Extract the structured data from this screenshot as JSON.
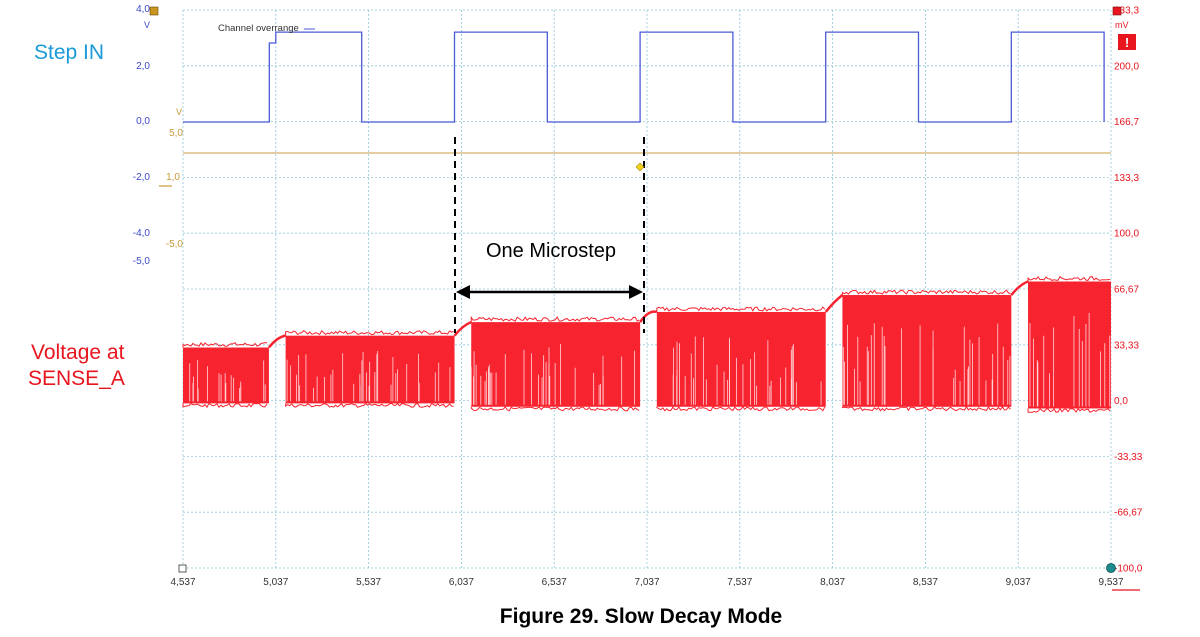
{
  "labels": {
    "step_in": "Step IN",
    "voltage_at": "Voltage at",
    "sense_a": "SENSE_A",
    "one_microstep": "One Microstep",
    "channel_overrange": "Channel overrange",
    "caption": "Figure 29. Slow Decay Mode",
    "unit_v": "V",
    "unit_mv": "mV",
    "unit_v_orange": "V",
    "warn_glyph": "!"
  },
  "colors": {
    "step_trace": "#4a5bd6",
    "sense_trace": "#f7232f",
    "trigger_line": "#d4b06b",
    "grid": "#8fc9d9",
    "blue_axis": "#3a4bc8",
    "red_axis": "#e8141e",
    "orange_axis": "#c89a3a",
    "step_label": "#1a9ad6",
    "sense_label": "#e8141e"
  },
  "chart_data": {
    "type": "line",
    "xlabel": "",
    "x_ticks": [
      "4,537",
      "5,037",
      "5,537",
      "6,037",
      "6,537",
      "7,037",
      "7,537",
      "8,037",
      "8,537",
      "9,037",
      "9,537"
    ],
    "xlim": [
      4.537,
      9.537
    ],
    "left_axis_blue": {
      "unit": "V",
      "ticks": [
        "4,0",
        "2,0",
        "0,0",
        "-2,0",
        "-4,0"
      ],
      "lim": [
        -4.0,
        4.0
      ]
    },
    "left_axis_orange": {
      "unit": "V",
      "ticks": [
        "5,0",
        "1,0",
        "-5,0"
      ]
    },
    "left_axis_extra": {
      "ticks": [
        "-5,0"
      ]
    },
    "right_axis_red": {
      "unit": "mV",
      "ticks": [
        "233,3",
        "200,0",
        "166,7",
        "133,3",
        "100,0",
        "66,67",
        "33,33",
        "0,0",
        "-33,33",
        "-66,67",
        "-100,0"
      ],
      "lim": [
        -100.0,
        233.3
      ]
    },
    "series": [
      {
        "name": "Step IN",
        "axis": "left_blue",
        "unit": "V",
        "points": [
          [
            4.537,
            0.0
          ],
          [
            5.002,
            0.0
          ],
          [
            5.002,
            2.9
          ],
          [
            5.037,
            2.9
          ],
          [
            5.037,
            3.3
          ],
          [
            5.5,
            3.3
          ],
          [
            5.5,
            0.0
          ],
          [
            6.0,
            0.0
          ],
          [
            6.0,
            3.3
          ],
          [
            6.5,
            3.3
          ],
          [
            6.5,
            0.0
          ],
          [
            7.0,
            0.0
          ],
          [
            7.0,
            3.3
          ],
          [
            7.5,
            3.3
          ],
          [
            7.5,
            0.0
          ],
          [
            8.0,
            0.0
          ],
          [
            8.0,
            3.3
          ],
          [
            8.5,
            3.3
          ],
          [
            8.5,
            0.0
          ],
          [
            9.0,
            0.0
          ],
          [
            9.0,
            3.3
          ],
          [
            9.5,
            3.3
          ],
          [
            9.5,
            0.0
          ]
        ]
      },
      {
        "name": "Voltage at SENSE_A",
        "axis": "right_red",
        "unit": "mV",
        "segments": [
          {
            "x": [
              4.537,
              5.0
            ],
            "peak": 31,
            "low": -2,
            "ramp_to": 36
          },
          {
            "x": [
              5.09,
              6.0
            ],
            "peak": 38,
            "low": -2,
            "ramp_to": 43
          },
          {
            "x": [
              6.09,
              7.0
            ],
            "peak": 46,
            "low": -4,
            "ramp_to": 52
          },
          {
            "x": [
              7.09,
              8.0
            ],
            "peak": 52,
            "low": -4,
            "ramp_to": 57
          },
          {
            "x": [
              8.09,
              9.0
            ],
            "peak": 62,
            "low": -4,
            "ramp_to": 67
          },
          {
            "x": [
              9.09,
              9.537
            ],
            "peak": 70,
            "low": -5,
            "ramp_to": 70
          }
        ]
      }
    ],
    "trigger_level_orange": "1,0",
    "microstep_marker": {
      "from": "6,037",
      "to": "7,037"
    }
  }
}
